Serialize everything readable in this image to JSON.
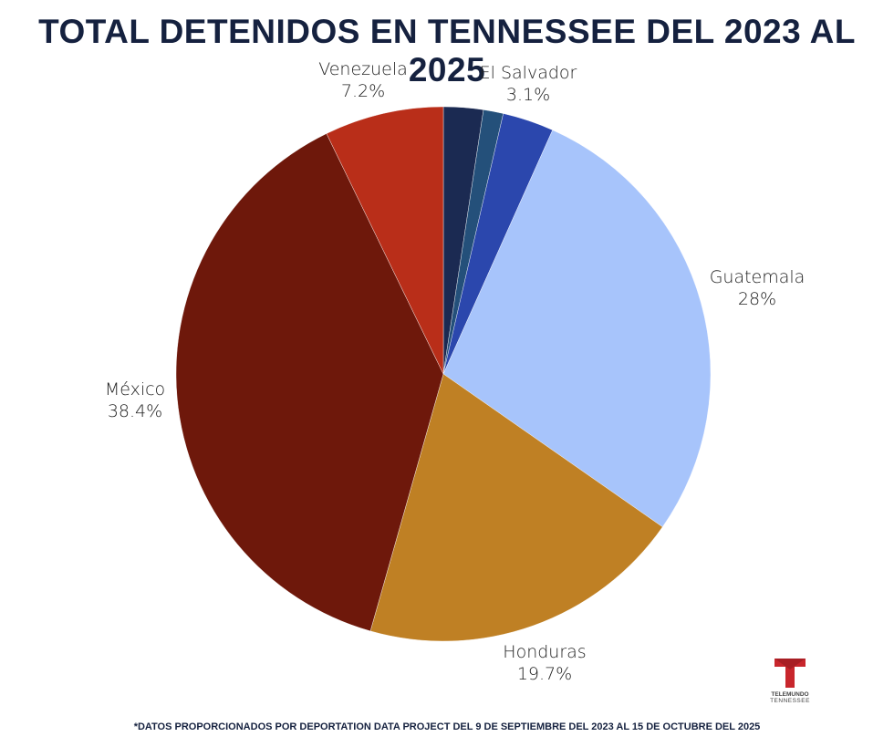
{
  "title": "TOTAL DETENIDOS EN TENNESSEE DEL 2023 AL 2025",
  "footnote": "*DATOS PROPORCIONADOS POR DEPORTATION DATA PROJECT DEL 9 DE SEPTIEMBRE DEL 2023 AL 15 DE OCTUBRE DEL 2025",
  "logo": {
    "line1": "TELEMUNDO",
    "line2": "TENNESSEE",
    "color": "#c8262c"
  },
  "chart_data": {
    "type": "pie",
    "title": "TOTAL DETENIDOS EN TENNESSEE DEL 2023 AL 2025",
    "start": "12 o'clock, clockwise",
    "slices": [
      {
        "name": "",
        "label": "",
        "value": 2.4,
        "color": "#1b2a52"
      },
      {
        "name": "",
        "label": "",
        "value": 1.2,
        "color": "#24507a"
      },
      {
        "name": "El Salvador",
        "label": "3.1%",
        "value": 3.1,
        "color": "#2b47ad"
      },
      {
        "name": "Guatemala",
        "label": "28%",
        "value": 28.0,
        "color": "#a7c4fb"
      },
      {
        "name": "Honduras",
        "label": "19.7%",
        "value": 19.7,
        "color": "#bf8024"
      },
      {
        "name": "México",
        "label": "38.4%",
        "value": 38.4,
        "color": "#6e180b"
      },
      {
        "name": "Venezuela",
        "label": "7.2%",
        "value": 7.2,
        "color": "#b92e19"
      }
    ]
  }
}
